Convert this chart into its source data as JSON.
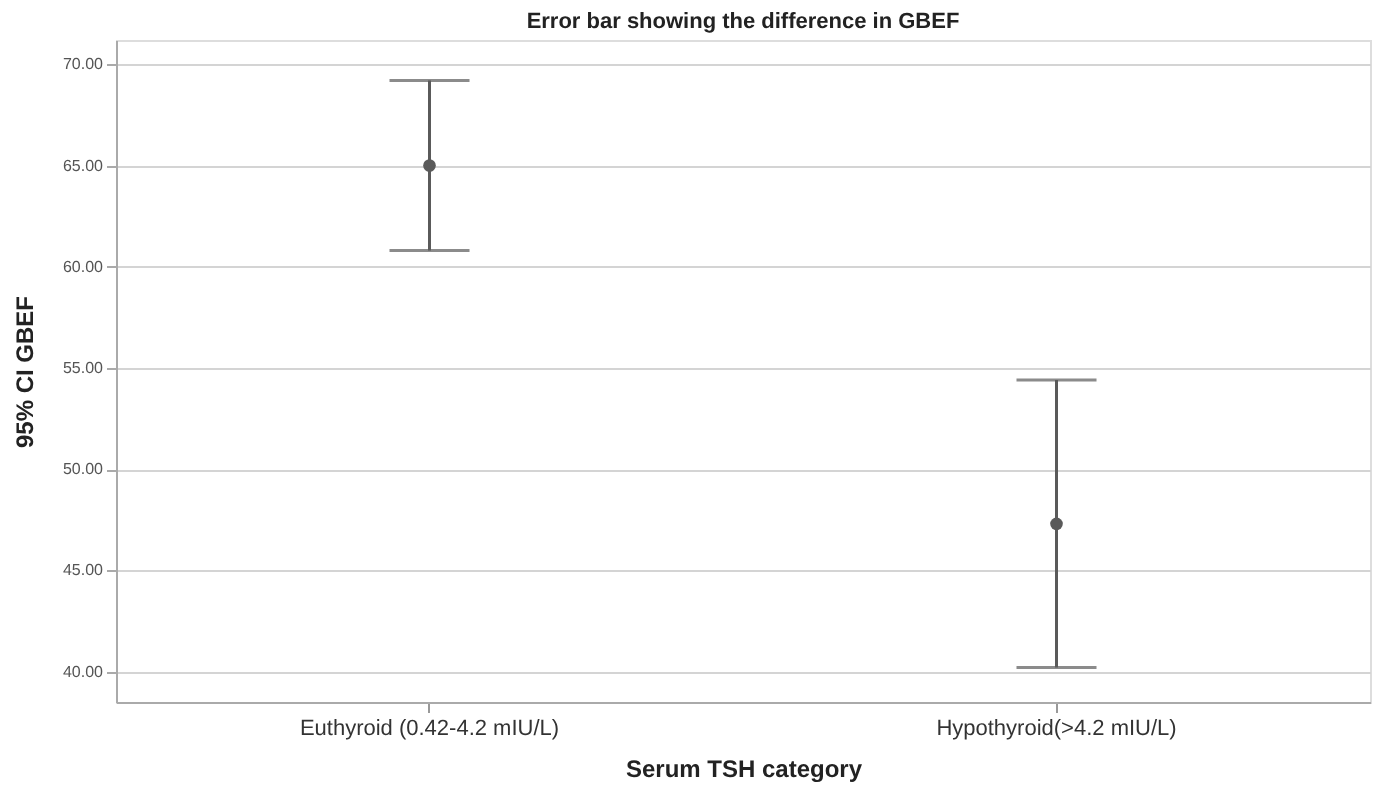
{
  "chart_data": {
    "type": "scatter",
    "title": "Error bar showing the difference in GBEF",
    "xlabel": "Serum TSH category",
    "ylabel": "95% CI GBEF",
    "categories": [
      "Euthyroid (0.42-4.2 mIU/L)",
      "Hypothyroid(>4.2 mIU/L)"
    ],
    "series": [
      {
        "color": "#5a5a5a",
        "values": [
          65.0,
          47.3
        ],
        "errors": [
          [
            60.8,
            69.2
          ],
          [
            40.2,
            54.4
          ]
        ]
      }
    ],
    "ylim": [
      38.5,
      71.2
    ],
    "yticks": [
      {
        "value": 40,
        "label": "40.00"
      },
      {
        "value": 45,
        "label": "45.00"
      },
      {
        "value": 50,
        "label": "50.00"
      },
      {
        "value": 55,
        "label": "55.00"
      },
      {
        "value": 60,
        "label": "60.00"
      },
      {
        "value": 65,
        "label": "65.00"
      },
      {
        "value": 70,
        "label": "70.00"
      }
    ],
    "grid": "y",
    "marker": "circle"
  }
}
